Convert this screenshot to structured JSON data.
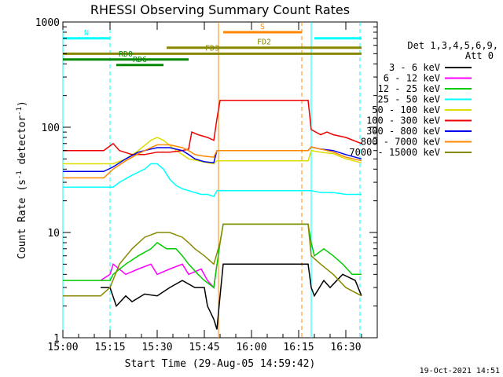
{
  "chart_data": {
    "type": "line",
    "title": "RHESSI Observing Summary Count Rates",
    "xlabel": "Start Time (29-Aug-05 14:59:42)",
    "ylabel_parts": [
      "Count Rate (s",
      "-1",
      " detector",
      "-1",
      ")"
    ],
    "y_scale": "log",
    "ylim": [
      1,
      1000
    ],
    "xlim_minutes": [
      0,
      100
    ],
    "x_ticks": [
      {
        "label": "15:00",
        "value": 0
      },
      {
        "label": "15:15",
        "value": 15
      },
      {
        "label": "15:30",
        "value": 30
      },
      {
        "label": "15:45",
        "value": 45
      },
      {
        "label": "16:00",
        "value": 60
      },
      {
        "label": "16:15",
        "value": 75
      },
      {
        "label": "16:30",
        "value": 90
      }
    ],
    "y_ticks": [
      {
        "label": "1",
        "value": 1
      },
      {
        "label": "10",
        "value": 10
      },
      {
        "label": "100",
        "value": 100
      },
      {
        "label": "1000",
        "value": 1000
      }
    ],
    "legend_header": [
      "Det 1,3,4,5,6,9,",
      "Att 0"
    ],
    "legend_position": "right",
    "timestamp": "19-Oct-2021 14:51",
    "series": [
      {
        "name": "3 - 6 keV",
        "color": "#000000",
        "points": [
          [
            12,
            3
          ],
          [
            15,
            3
          ],
          [
            17,
            2
          ],
          [
            20,
            2.5
          ],
          [
            22,
            2.2
          ],
          [
            26,
            2.6
          ],
          [
            30,
            2.5
          ],
          [
            34,
            3
          ],
          [
            38,
            3.5
          ],
          [
            42,
            3
          ],
          [
            45,
            3
          ],
          [
            46,
            2
          ],
          [
            48,
            1.5
          ],
          [
            49,
            1.2
          ],
          [
            50,
            2.5
          ],
          [
            51,
            5
          ],
          [
            78,
            5
          ],
          [
            79,
            3
          ],
          [
            80,
            2.5
          ],
          [
            83,
            3.5
          ],
          [
            85,
            3
          ],
          [
            89,
            4
          ],
          [
            93,
            3.5
          ],
          [
            95,
            2.5
          ]
        ]
      },
      {
        "name": "6 - 12 keV",
        "color": "#ff00ff",
        "points": [
          [
            12,
            3.5
          ],
          [
            15,
            4
          ],
          [
            16,
            5
          ],
          [
            20,
            4
          ],
          [
            24,
            4.5
          ],
          [
            28,
            5
          ],
          [
            30,
            4
          ],
          [
            34,
            4.5
          ],
          [
            38,
            5
          ],
          [
            40,
            4
          ],
          [
            44,
            4.5
          ],
          [
            46,
            3.5
          ],
          [
            48,
            3
          ],
          [
            49,
            5
          ]
        ]
      },
      {
        "name": "12 - 25 keV",
        "color": "#00cc00",
        "points": [
          [
            0,
            3.5
          ],
          [
            15,
            3.5
          ],
          [
            16,
            4
          ],
          [
            20,
            5
          ],
          [
            24,
            6
          ],
          [
            28,
            7
          ],
          [
            30,
            8
          ],
          [
            33,
            7
          ],
          [
            36,
            7
          ],
          [
            38,
            6
          ],
          [
            40,
            5
          ],
          [
            43,
            4
          ],
          [
            45,
            3.5
          ],
          [
            48,
            3
          ],
          [
            50,
            8
          ],
          [
            51,
            12
          ],
          [
            78,
            12
          ],
          [
            79,
            8
          ],
          [
            80,
            6
          ],
          [
            83,
            7
          ],
          [
            86,
            6
          ],
          [
            89,
            5
          ],
          [
            92,
            4
          ],
          [
            95,
            4
          ]
        ]
      },
      {
        "name": "25 - 50 keV",
        "color": "#00ffff",
        "points": [
          [
            0,
            27
          ],
          [
            13,
            27
          ],
          [
            16,
            27
          ],
          [
            18,
            30
          ],
          [
            22,
            35
          ],
          [
            26,
            40
          ],
          [
            28,
            45
          ],
          [
            30,
            45
          ],
          [
            32,
            40
          ],
          [
            34,
            32
          ],
          [
            36,
            28
          ],
          [
            38,
            26
          ],
          [
            40,
            25
          ],
          [
            42,
            24
          ],
          [
            44,
            23
          ],
          [
            46,
            23
          ],
          [
            48,
            22
          ],
          [
            49,
            25
          ],
          [
            78,
            25
          ],
          [
            79,
            25
          ],
          [
            82,
            24
          ],
          [
            86,
            24
          ],
          [
            90,
            23
          ],
          [
            95,
            23
          ]
        ]
      },
      {
        "name": "50 - 100 keV",
        "color": "#dddd00",
        "points": [
          [
            0,
            45
          ],
          [
            13,
            45
          ],
          [
            16,
            45
          ],
          [
            20,
            50
          ],
          [
            24,
            60
          ],
          [
            28,
            75
          ],
          [
            30,
            80
          ],
          [
            32,
            75
          ],
          [
            36,
            60
          ],
          [
            38,
            55
          ],
          [
            40,
            50
          ],
          [
            43,
            48
          ],
          [
            46,
            46
          ],
          [
            48,
            45
          ],
          [
            49,
            48
          ],
          [
            78,
            48
          ],
          [
            79,
            60
          ],
          [
            82,
            58
          ],
          [
            86,
            56
          ],
          [
            90,
            50
          ],
          [
            95,
            46
          ]
        ]
      },
      {
        "name": "100 - 300 keV",
        "color": "#ee0000",
        "points": [
          [
            0,
            60
          ],
          [
            13,
            60
          ],
          [
            16,
            70
          ],
          [
            18,
            60
          ],
          [
            22,
            55
          ],
          [
            26,
            55
          ],
          [
            30,
            58
          ],
          [
            34,
            58
          ],
          [
            38,
            60
          ],
          [
            40,
            62
          ],
          [
            41,
            90
          ],
          [
            43,
            85
          ],
          [
            46,
            80
          ],
          [
            48,
            75
          ],
          [
            49,
            120
          ],
          [
            50,
            180
          ],
          [
            78,
            180
          ],
          [
            79,
            95
          ],
          [
            82,
            85
          ],
          [
            84,
            90
          ],
          [
            86,
            85
          ],
          [
            90,
            80
          ],
          [
            95,
            70
          ]
        ]
      },
      {
        "name": "300 - 800 keV",
        "color": "#0000ee",
        "points": [
          [
            0,
            38
          ],
          [
            13,
            38
          ],
          [
            16,
            42
          ],
          [
            20,
            50
          ],
          [
            24,
            58
          ],
          [
            28,
            62
          ],
          [
            30,
            64
          ],
          [
            34,
            64
          ],
          [
            38,
            60
          ],
          [
            40,
            55
          ],
          [
            42,
            50
          ],
          [
            45,
            47
          ],
          [
            48,
            46
          ],
          [
            49,
            60
          ],
          [
            78,
            60
          ],
          [
            79,
            65
          ],
          [
            82,
            62
          ],
          [
            86,
            60
          ],
          [
            90,
            55
          ],
          [
            95,
            50
          ]
        ]
      },
      {
        "name": "800 - 7000 keV",
        "color": "#ff8800",
        "points": [
          [
            0,
            33
          ],
          [
            13,
            33
          ],
          [
            16,
            40
          ],
          [
            20,
            48
          ],
          [
            24,
            56
          ],
          [
            28,
            64
          ],
          [
            30,
            68
          ],
          [
            34,
            68
          ],
          [
            38,
            64
          ],
          [
            40,
            60
          ],
          [
            42,
            55
          ],
          [
            45,
            53
          ],
          [
            48,
            52
          ],
          [
            49,
            60
          ],
          [
            78,
            60
          ],
          [
            79,
            65
          ],
          [
            82,
            62
          ],
          [
            86,
            58
          ],
          [
            90,
            52
          ],
          [
            95,
            48
          ]
        ]
      },
      {
        "name": "7000 - 15000 keV",
        "color": "#888800",
        "points": [
          [
            0,
            2.5
          ],
          [
            12,
            2.5
          ],
          [
            15,
            3
          ],
          [
            18,
            5
          ],
          [
            22,
            7
          ],
          [
            26,
            9
          ],
          [
            30,
            10
          ],
          [
            34,
            10
          ],
          [
            38,
            9
          ],
          [
            40,
            8
          ],
          [
            42,
            7
          ],
          [
            45,
            6
          ],
          [
            48,
            5
          ],
          [
            50,
            8
          ],
          [
            51,
            12
          ],
          [
            78,
            12
          ],
          [
            79,
            6
          ],
          [
            82,
            5
          ],
          [
            86,
            4
          ],
          [
            90,
            3
          ],
          [
            95,
            2.5
          ]
        ]
      }
    ],
    "annotations": [
      {
        "label": "N",
        "color": "#00ffff",
        "level": 700,
        "x1": 0,
        "x2": 15,
        "dashed": false
      },
      {
        "label": "",
        "color": "#00ffff",
        "level": 700,
        "x1": 80,
        "x2": 95,
        "dashed": false
      },
      {
        "label": "S",
        "color": "#ff8800",
        "level": 800,
        "x1": 51,
        "x2": 76,
        "dashed": false
      },
      {
        "label": "FD2",
        "color": "#888800",
        "level": 570,
        "x1": 33,
        "x2": 95,
        "dashed": false
      },
      {
        "label": "FD3",
        "color": "#888800",
        "level": 500,
        "x1": 0,
        "x2": 95,
        "dashed": false
      },
      {
        "label": "RD0",
        "color": "#008800",
        "level": 440,
        "x1": 0,
        "x2": 40,
        "dashed": false
      },
      {
        "label": "RD6",
        "color": "#008800",
        "level": 390,
        "x1": 17,
        "x2": 32,
        "dashed": false
      }
    ],
    "vertical_markers": [
      {
        "color": "#00ffff",
        "x": 0,
        "dashed": false
      },
      {
        "color": "#00ffff",
        "x": 15,
        "dashed": true
      },
      {
        "color": "#ff8800",
        "x": 49.5,
        "dashed": false
      },
      {
        "color": "#ff8800",
        "x": 76,
        "dashed": true
      },
      {
        "color": "#00ffff",
        "x": 79,
        "dashed": false
      },
      {
        "color": "#00ffff",
        "x": 94.5,
        "dashed": true
      }
    ]
  }
}
